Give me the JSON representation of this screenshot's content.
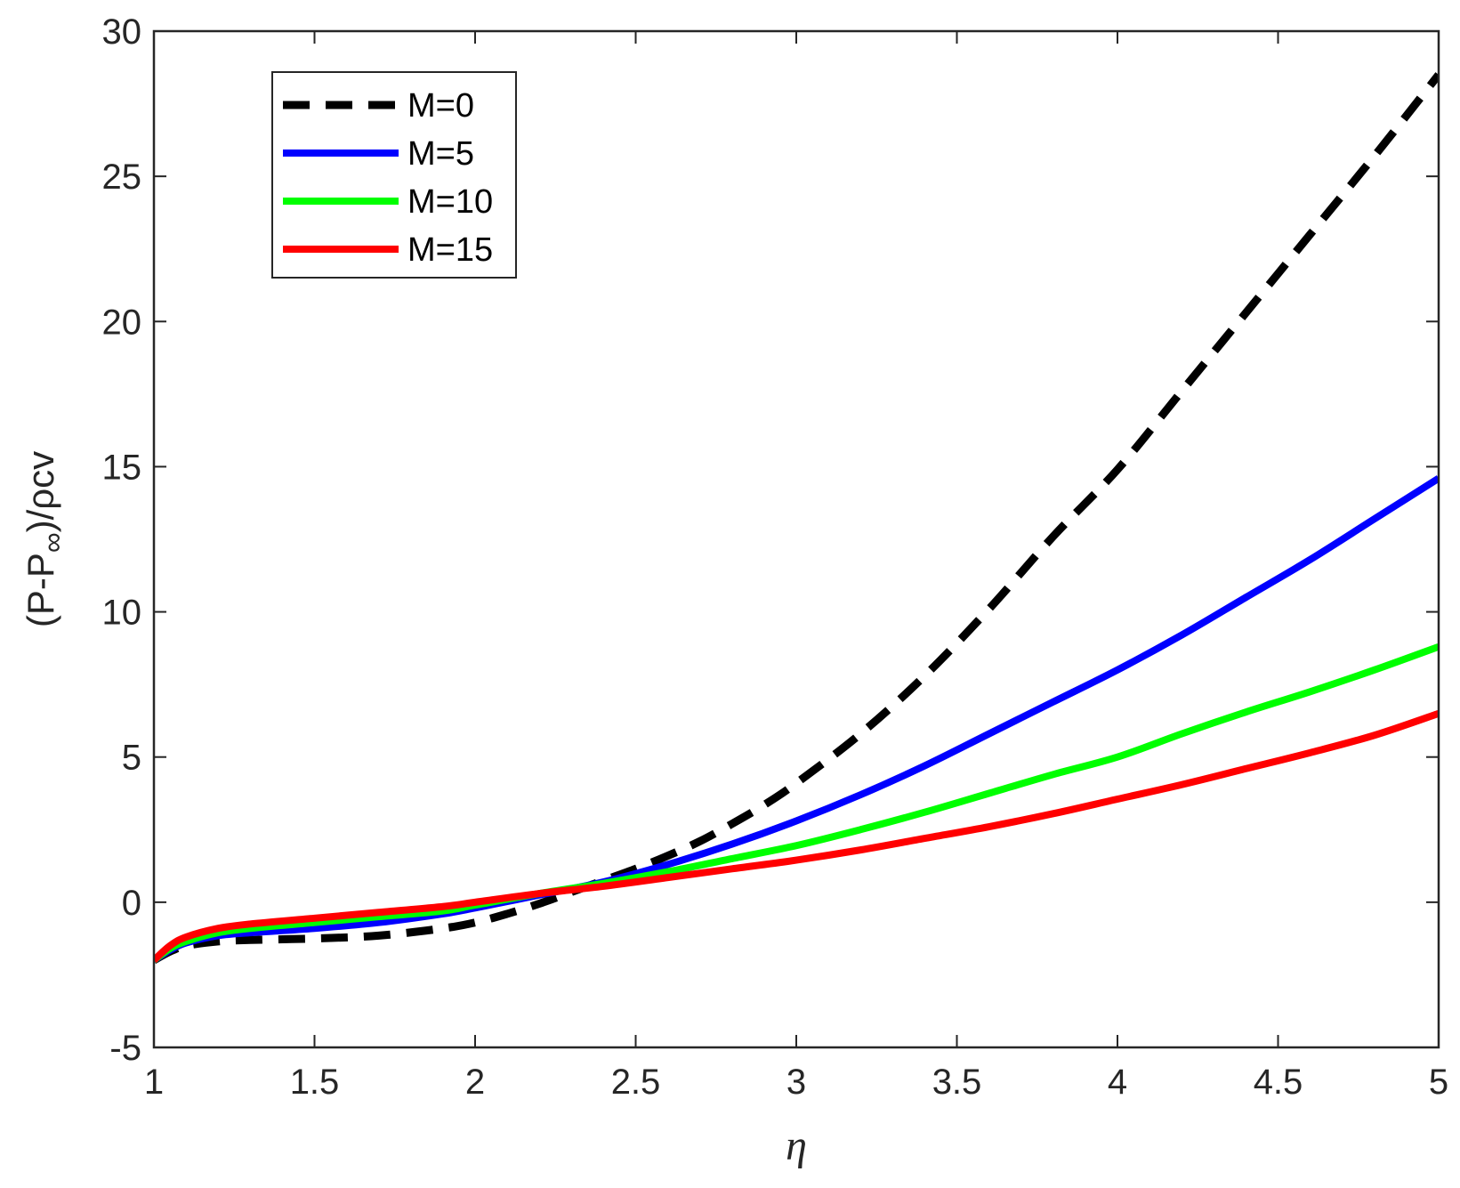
{
  "chart_data": {
    "type": "line",
    "title": "",
    "xlabel": "η",
    "ylabel": {
      "prefix": "(P-P",
      "subscript": "∞",
      "suffix": ")/ρcv"
    },
    "xlim": [
      1,
      5
    ],
    "ylim": [
      -5,
      30
    ],
    "xticks": [
      1,
      1.5,
      2,
      2.5,
      3,
      3.5,
      4,
      4.5,
      5
    ],
    "xtick_labels": [
      "1",
      "1.5",
      "2",
      "2.5",
      "3",
      "3.5",
      "4",
      "4.5",
      "5"
    ],
    "yticks": [
      -5,
      0,
      5,
      10,
      15,
      20,
      25,
      30
    ],
    "ytick_labels": [
      "-5",
      "0",
      "5",
      "10",
      "15",
      "20",
      "25",
      "30"
    ],
    "grid": false,
    "legend_position": "top-left",
    "series": [
      {
        "name": "M=0",
        "color": "#000000",
        "style": "dashed",
        "x": [
          1,
          1.05,
          1.1,
          1.2,
          1.3,
          1.5,
          1.7,
          1.9,
          2.0,
          2.1,
          2.2,
          2.3,
          2.4,
          2.5,
          2.6,
          2.7,
          2.8,
          2.9,
          3.0,
          3.2,
          3.4,
          3.6,
          3.8,
          4.0,
          4.2,
          4.4,
          4.6,
          4.8,
          5.0
        ],
        "y": [
          -2.0,
          -1.7,
          -1.5,
          -1.35,
          -1.3,
          -1.25,
          -1.15,
          -0.9,
          -0.7,
          -0.4,
          -0.05,
          0.35,
          0.75,
          1.15,
          1.6,
          2.1,
          2.7,
          3.35,
          4.1,
          5.8,
          7.8,
          10.1,
          12.6,
          14.9,
          17.6,
          20.3,
          23.0,
          25.7,
          28.5
        ]
      },
      {
        "name": "M=5",
        "color": "#0000ff",
        "style": "solid",
        "x": [
          1,
          1.05,
          1.1,
          1.2,
          1.3,
          1.5,
          1.7,
          1.9,
          2.0,
          2.2,
          2.4,
          2.6,
          2.8,
          3.0,
          3.2,
          3.4,
          3.6,
          3.8,
          4.0,
          4.2,
          4.4,
          4.6,
          4.8,
          5.0
        ],
        "y": [
          -2.0,
          -1.65,
          -1.4,
          -1.15,
          -1.05,
          -0.9,
          -0.7,
          -0.4,
          -0.2,
          0.25,
          0.7,
          1.3,
          2.0,
          2.8,
          3.7,
          4.7,
          5.8,
          6.9,
          8.0,
          9.2,
          10.5,
          11.8,
          13.2,
          14.6
        ]
      },
      {
        "name": "M=10",
        "color": "#00ff00",
        "style": "solid",
        "x": [
          1,
          1.05,
          1.1,
          1.2,
          1.3,
          1.5,
          1.7,
          1.9,
          2.0,
          2.2,
          2.4,
          2.6,
          2.8,
          3.0,
          3.2,
          3.4,
          3.6,
          3.8,
          4.0,
          4.2,
          4.4,
          4.6,
          4.8,
          5.0
        ],
        "y": [
          -2.0,
          -1.6,
          -1.35,
          -1.05,
          -0.9,
          -0.7,
          -0.5,
          -0.3,
          -0.1,
          0.3,
          0.65,
          1.05,
          1.5,
          1.95,
          2.5,
          3.1,
          3.75,
          4.4,
          5.0,
          5.8,
          6.55,
          7.25,
          8.0,
          8.8
        ]
      },
      {
        "name": "M=15",
        "color": "#ff0000",
        "style": "solid",
        "x": [
          1,
          1.05,
          1.1,
          1.2,
          1.3,
          1.5,
          1.7,
          1.9,
          2.0,
          2.2,
          2.4,
          2.6,
          2.8,
          3.0,
          3.2,
          3.4,
          3.6,
          3.8,
          4.0,
          4.2,
          4.4,
          4.6,
          4.8,
          5.0
        ],
        "y": [
          -2.0,
          -1.5,
          -1.2,
          -0.9,
          -0.75,
          -0.55,
          -0.35,
          -0.15,
          0.0,
          0.3,
          0.55,
          0.85,
          1.15,
          1.45,
          1.8,
          2.2,
          2.6,
          3.05,
          3.55,
          4.05,
          4.6,
          5.15,
          5.75,
          6.5
        ]
      }
    ]
  }
}
